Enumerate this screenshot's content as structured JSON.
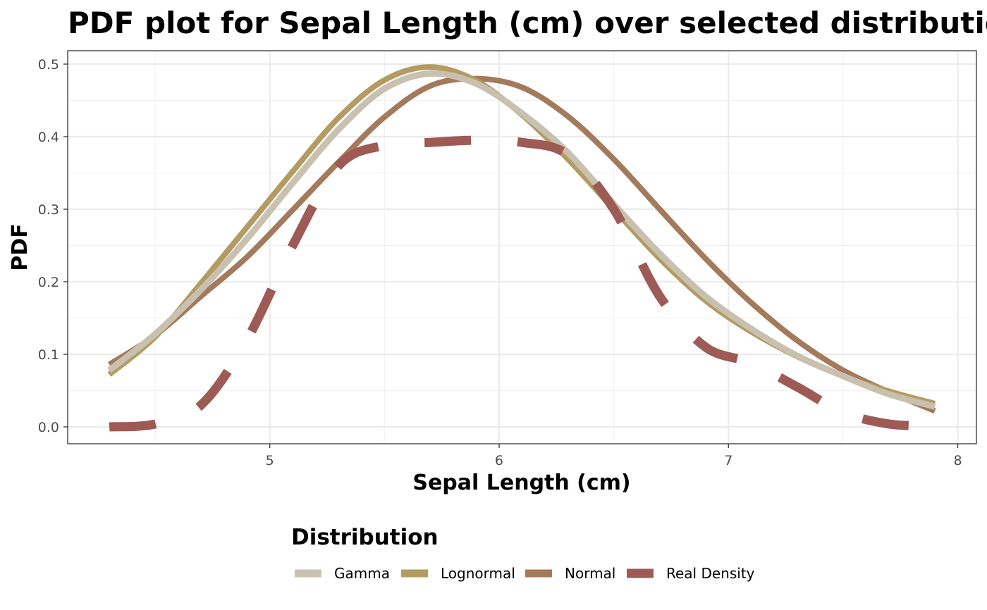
{
  "chart_data": {
    "type": "line",
    "title": "PDF plot for Sepal Length (cm) over selected distributions",
    "xlabel": "Sepal Length (cm)",
    "ylabel": "PDF",
    "xlim": [
      4.3,
      7.9
    ],
    "ylim": [
      0,
      0.5
    ],
    "x_ticks": [
      5,
      6,
      7,
      8
    ],
    "y_ticks": [
      0.0,
      0.1,
      0.2,
      0.3,
      0.4,
      0.5
    ],
    "x_tick_labels": [
      "5",
      "6",
      "7",
      "8"
    ],
    "y_tick_labels": [
      "0.0",
      "0.1",
      "0.2",
      "0.3",
      "0.4",
      "0.5"
    ],
    "grid": true,
    "legend": {
      "title": "Distribution",
      "position": "bottom"
    },
    "series": [
      {
        "name": "Gamma",
        "color": "#c8c1b0",
        "dash": "solid",
        "x": [
          4.3,
          4.5,
          4.7,
          4.9,
          5.1,
          5.3,
          5.5,
          5.7,
          5.9,
          6.1,
          6.3,
          6.5,
          6.7,
          6.9,
          7.1,
          7.3,
          7.5,
          7.7,
          7.9
        ],
        "y": [
          0.078,
          0.128,
          0.189,
          0.259,
          0.336,
          0.41,
          0.466,
          0.487,
          0.473,
          0.432,
          0.378,
          0.307,
          0.239,
          0.18,
          0.135,
          0.098,
          0.07,
          0.045,
          0.028
        ]
      },
      {
        "name": "Lognormal",
        "color": "#b39b62",
        "dash": "solid",
        "x": [
          4.3,
          4.5,
          4.7,
          4.9,
          5.1,
          5.3,
          5.5,
          5.7,
          5.9,
          6.1,
          6.3,
          6.5,
          6.7,
          6.9,
          7.1,
          7.3,
          7.5,
          7.7,
          7.9
        ],
        "y": [
          0.072,
          0.124,
          0.198,
          0.275,
          0.352,
          0.426,
          0.478,
          0.496,
          0.477,
          0.43,
          0.369,
          0.3,
          0.232,
          0.174,
          0.131,
          0.097,
          0.07,
          0.049,
          0.032
        ]
      },
      {
        "name": "Normal",
        "color": "#a47a5c",
        "dash": "solid",
        "x": [
          4.3,
          4.5,
          4.7,
          4.9,
          5.1,
          5.3,
          5.5,
          5.7,
          5.9,
          6.1,
          6.3,
          6.5,
          6.7,
          6.9,
          7.1,
          7.3,
          7.5,
          7.7,
          7.9
        ],
        "y": [
          0.086,
          0.126,
          0.18,
          0.234,
          0.299,
          0.365,
          0.427,
          0.47,
          0.48,
          0.468,
          0.428,
          0.369,
          0.3,
          0.232,
          0.171,
          0.119,
          0.078,
          0.048,
          0.022
        ]
      },
      {
        "name": "Real Density",
        "color": "#9e5a55",
        "dash": "dashed",
        "x": [
          4.3,
          4.5,
          4.7,
          4.9,
          5.1,
          5.3,
          5.5,
          5.7,
          5.9,
          6.1,
          6.3,
          6.5,
          6.7,
          6.9,
          7.1,
          7.3,
          7.5,
          7.7,
          7.9
        ],
        "y": [
          0.0,
          0.004,
          0.03,
          0.12,
          0.25,
          0.36,
          0.388,
          0.392,
          0.395,
          0.392,
          0.375,
          0.3,
          0.18,
          0.11,
          0.088,
          0.055,
          0.02,
          0.004,
          0.001
        ]
      }
    ]
  }
}
